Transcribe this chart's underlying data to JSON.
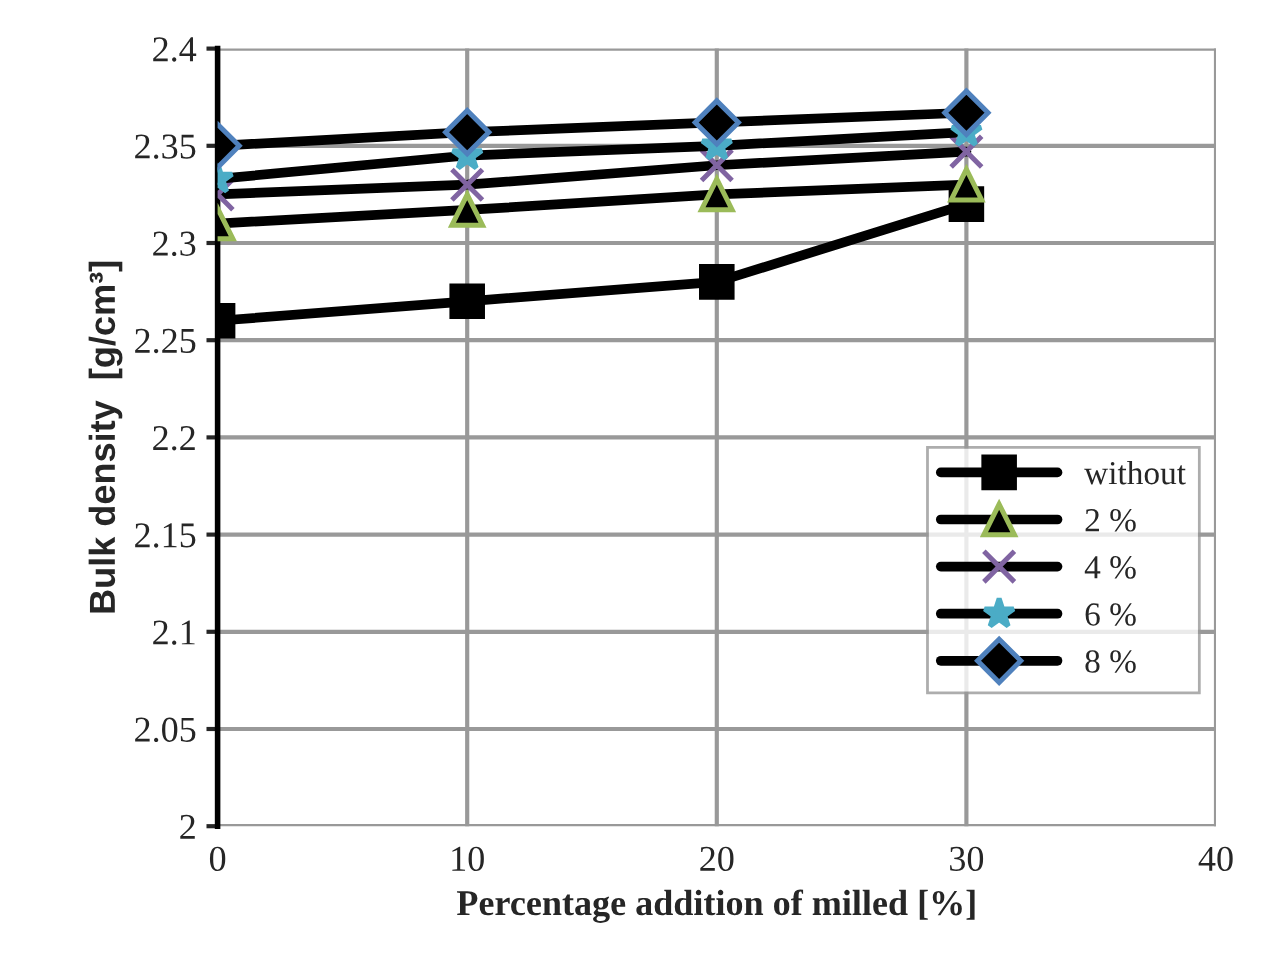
{
  "chart_data": {
    "type": "line",
    "xlabel": "Percentage addition of milled [%]",
    "ylabel": "Bulk density  [g/cm³]",
    "x": [
      0,
      10,
      20,
      30
    ],
    "series": [
      {
        "name": "without",
        "color": "#000000",
        "marker": "square",
        "values": [
          2.26,
          2.27,
          2.28,
          2.32
        ]
      },
      {
        "name": "2 %",
        "color": "#9bbb59",
        "marker": "triangle",
        "values": [
          2.31,
          2.317,
          2.325,
          2.33
        ]
      },
      {
        "name": "4 %",
        "color": "#8064a2",
        "marker": "cross",
        "values": [
          2.325,
          2.33,
          2.34,
          2.347
        ]
      },
      {
        "name": "6 %",
        "color": "#4bacc6",
        "marker": "star",
        "values": [
          2.333,
          2.345,
          2.35,
          2.357
        ]
      },
      {
        "name": "8 %",
        "color": "#4f81bd",
        "marker": "diamond",
        "values": [
          2.35,
          2.357,
          2.362,
          2.367
        ]
      }
    ],
    "xlim": [
      0,
      40
    ],
    "xticks": [
      0,
      10,
      20,
      30,
      40
    ],
    "ylim": [
      2,
      2.4
    ],
    "yticks": [
      2,
      2.05,
      2.1,
      2.15,
      2.2,
      2.25,
      2.3,
      2.35,
      2.4
    ],
    "grid": true,
    "legend": "bottom right",
    "line_style": "solid"
  }
}
